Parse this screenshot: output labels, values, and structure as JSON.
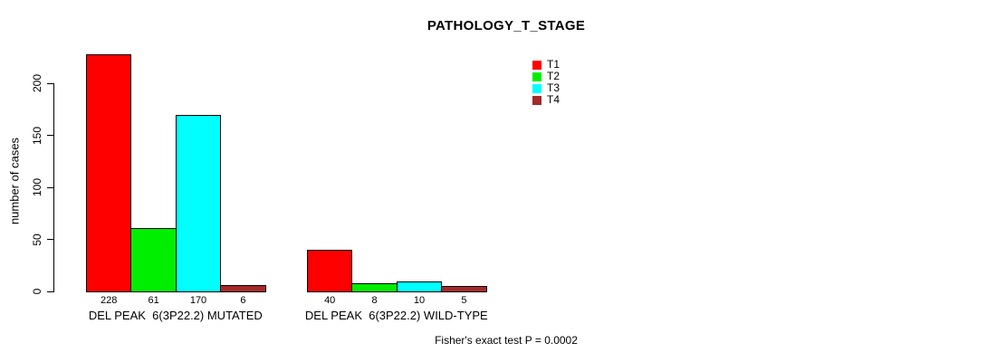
{
  "chart_data": {
    "type": "bar",
    "title": "PATHOLOGY_T_STAGE",
    "xlabel": "",
    "ylabel": "number of cases",
    "ylim": [
      0,
      230
    ],
    "yticks": [
      0,
      50,
      100,
      150,
      200
    ],
    "grid": false,
    "legend_position": "top-center-right",
    "categories": [
      "DEL PEAK  6(3P22.2) MUTATED",
      "DEL PEAK  6(3P22.2) WILD-TYPE"
    ],
    "series": [
      {
        "name": "T1",
        "color": "#FF0000",
        "values": [
          228,
          40
        ]
      },
      {
        "name": "T2",
        "color": "#00EE00",
        "values": [
          61,
          8
        ]
      },
      {
        "name": "T3",
        "color": "#00FFFF",
        "values": [
          170,
          10
        ]
      },
      {
        "name": "T4",
        "color": "#A52A2A",
        "values": [
          6,
          5
        ]
      }
    ],
    "bar_value_labels": [
      [
        228,
        61,
        170,
        6
      ],
      [
        40,
        8,
        10,
        5
      ]
    ],
    "annotation": "Fisher's exact test P = 0.0002",
    "colors": {
      "bar_border": "#000000",
      "axis": "#000000",
      "text": "#000000",
      "background": "#FFFFFF"
    }
  }
}
